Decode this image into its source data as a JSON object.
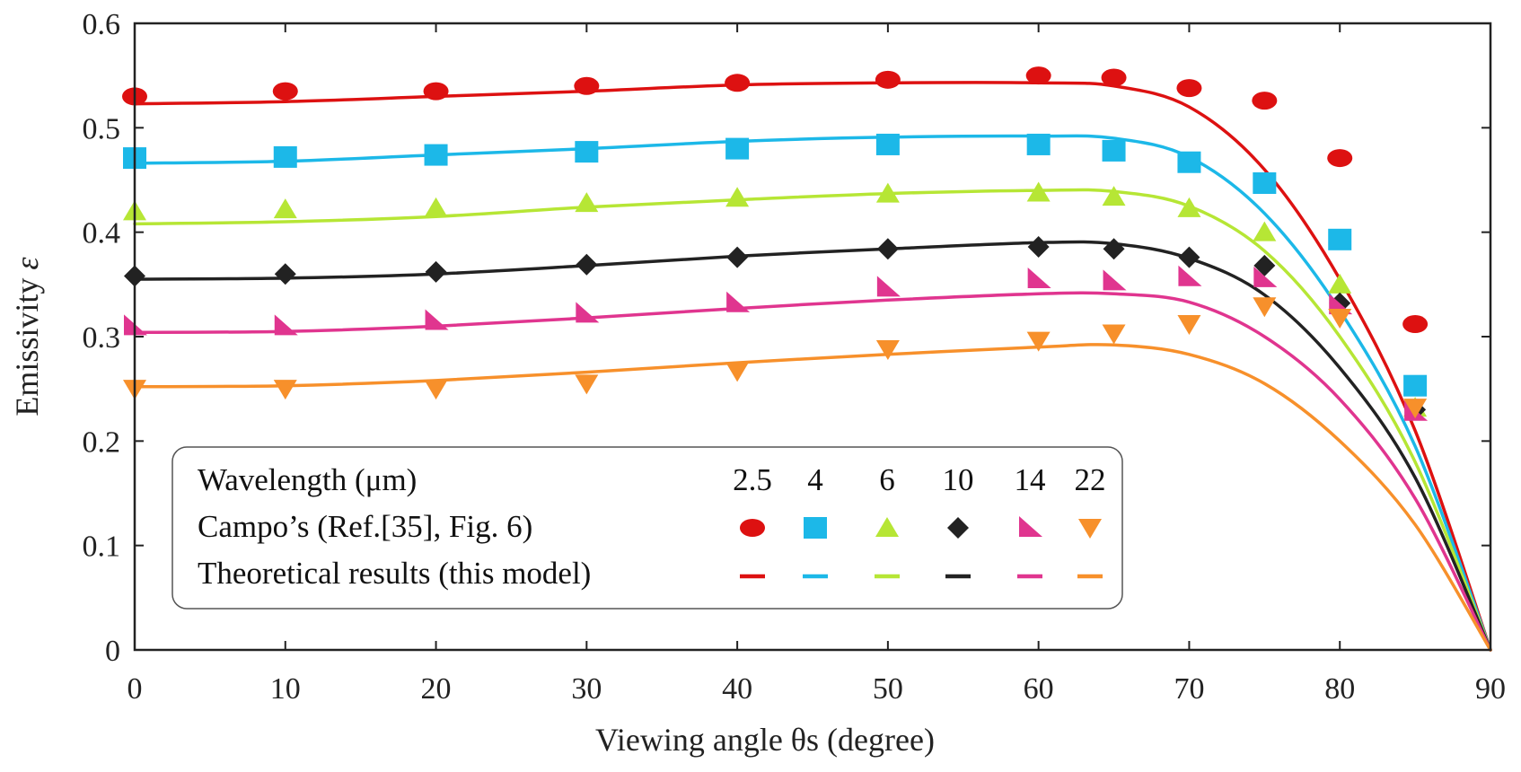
{
  "chart_data": {
    "type": "scatter",
    "title": "",
    "xlabel": "Viewing angle θs (degree)",
    "ylabel_main": "Emissivity ",
    "ylabel_symbol": "ε",
    "xlim": [
      0,
      90
    ],
    "ylim": [
      0,
      0.6
    ],
    "xticks": [
      0,
      10,
      20,
      30,
      40,
      50,
      60,
      70,
      80,
      90
    ],
    "yticks": [
      0,
      0.1,
      0.2,
      0.3,
      0.4,
      0.5,
      0.6
    ],
    "xtick_labels": [
      "0",
      "10",
      "20",
      "30",
      "40",
      "50",
      "60",
      "70",
      "80",
      "90"
    ],
    "ytick_labels": [
      "0",
      "0.1",
      "0.2",
      "0.3",
      "0.4",
      "0.5",
      "0.6"
    ],
    "grid": false,
    "legend": {
      "position": "bottom-left",
      "header_label": "Wavelength (μm)",
      "markers_label": "Campo’s (Ref.[35], Fig. 6)",
      "lines_label": "Theoretical results (this model)"
    },
    "series": [
      {
        "wavelength": "2.5",
        "color": "#dd1111",
        "marker": "ellipse",
        "points": [
          [
            0,
            0.53
          ],
          [
            10,
            0.535
          ],
          [
            20,
            0.535
          ],
          [
            30,
            0.54
          ],
          [
            40,
            0.543
          ],
          [
            50,
            0.546
          ],
          [
            60,
            0.55
          ],
          [
            65,
            0.548
          ],
          [
            70,
            0.538
          ],
          [
            75,
            0.526
          ],
          [
            80,
            0.471
          ],
          [
            85,
            0.312
          ]
        ],
        "curve": [
          [
            0,
            0.523
          ],
          [
            10,
            0.525
          ],
          [
            20,
            0.53
          ],
          [
            30,
            0.535
          ],
          [
            40,
            0.541
          ],
          [
            50,
            0.543
          ],
          [
            60,
            0.543
          ],
          [
            65,
            0.54
          ],
          [
            70,
            0.52
          ],
          [
            75,
            0.46
          ],
          [
            80,
            0.355
          ],
          [
            85,
            0.21
          ],
          [
            90,
            0
          ]
        ]
      },
      {
        "wavelength": "4",
        "color": "#1cb8e8",
        "marker": "square",
        "points": [
          [
            0,
            0.471
          ],
          [
            10,
            0.472
          ],
          [
            20,
            0.474
          ],
          [
            30,
            0.477
          ],
          [
            40,
            0.48
          ],
          [
            50,
            0.484
          ],
          [
            60,
            0.484
          ],
          [
            65,
            0.478
          ],
          [
            70,
            0.467
          ],
          [
            75,
            0.447
          ],
          [
            80,
            0.393
          ],
          [
            85,
            0.253
          ]
        ],
        "curve": [
          [
            0,
            0.466
          ],
          [
            10,
            0.468
          ],
          [
            20,
            0.474
          ],
          [
            30,
            0.48
          ],
          [
            40,
            0.487
          ],
          [
            50,
            0.491
          ],
          [
            60,
            0.492
          ],
          [
            65,
            0.49
          ],
          [
            70,
            0.472
          ],
          [
            75,
            0.418
          ],
          [
            80,
            0.325
          ],
          [
            85,
            0.195
          ],
          [
            90,
            0
          ]
        ]
      },
      {
        "wavelength": "6",
        "color": "#b6e635",
        "marker": "triangle-up",
        "points": [
          [
            0,
            0.42
          ],
          [
            10,
            0.422
          ],
          [
            20,
            0.423
          ],
          [
            30,
            0.428
          ],
          [
            40,
            0.433
          ],
          [
            50,
            0.437
          ],
          [
            60,
            0.438
          ],
          [
            65,
            0.434
          ],
          [
            70,
            0.423
          ],
          [
            75,
            0.4
          ],
          [
            80,
            0.35
          ],
          [
            85,
            0.232
          ]
        ],
        "curve": [
          [
            0,
            0.408
          ],
          [
            10,
            0.41
          ],
          [
            20,
            0.415
          ],
          [
            30,
            0.424
          ],
          [
            40,
            0.431
          ],
          [
            50,
            0.437
          ],
          [
            60,
            0.44
          ],
          [
            65,
            0.439
          ],
          [
            70,
            0.425
          ],
          [
            75,
            0.382
          ],
          [
            80,
            0.3
          ],
          [
            85,
            0.18
          ],
          [
            90,
            0
          ]
        ]
      },
      {
        "wavelength": "10",
        "color": "#222222",
        "marker": "diamond",
        "points": [
          [
            0,
            0.358
          ],
          [
            10,
            0.36
          ],
          [
            20,
            0.362
          ],
          [
            30,
            0.369
          ],
          [
            40,
            0.376
          ],
          [
            50,
            0.384
          ],
          [
            60,
            0.386
          ],
          [
            65,
            0.384
          ],
          [
            70,
            0.376
          ],
          [
            75,
            0.368
          ],
          [
            80,
            0.332
          ],
          [
            85,
            0.23
          ]
        ],
        "curve": [
          [
            0,
            0.355
          ],
          [
            10,
            0.356
          ],
          [
            20,
            0.36
          ],
          [
            30,
            0.368
          ],
          [
            40,
            0.377
          ],
          [
            50,
            0.384
          ],
          [
            60,
            0.39
          ],
          [
            65,
            0.389
          ],
          [
            70,
            0.375
          ],
          [
            75,
            0.34
          ],
          [
            80,
            0.27
          ],
          [
            85,
            0.165
          ],
          [
            90,
            0
          ]
        ]
      },
      {
        "wavelength": "14",
        "color": "#e0358f",
        "marker": "triangle-right",
        "points": [
          [
            0,
            0.31
          ],
          [
            10,
            0.31
          ],
          [
            20,
            0.315
          ],
          [
            30,
            0.322
          ],
          [
            40,
            0.332
          ],
          [
            50,
            0.347
          ],
          [
            60,
            0.355
          ],
          [
            65,
            0.353
          ],
          [
            70,
            0.357
          ],
          [
            75,
            0.356
          ],
          [
            80,
            0.33
          ],
          [
            85,
            0.228
          ]
        ],
        "curve": [
          [
            0,
            0.304
          ],
          [
            10,
            0.305
          ],
          [
            20,
            0.31
          ],
          [
            30,
            0.318
          ],
          [
            40,
            0.327
          ],
          [
            50,
            0.335
          ],
          [
            60,
            0.341
          ],
          [
            65,
            0.341
          ],
          [
            70,
            0.333
          ],
          [
            75,
            0.3
          ],
          [
            80,
            0.24
          ],
          [
            85,
            0.145
          ],
          [
            90,
            0
          ]
        ]
      },
      {
        "wavelength": "22",
        "color": "#f7902b",
        "marker": "triangle-down",
        "points": [
          [
            0,
            0.25
          ],
          [
            10,
            0.25
          ],
          [
            20,
            0.25
          ],
          [
            30,
            0.255
          ],
          [
            40,
            0.267
          ],
          [
            50,
            0.288
          ],
          [
            60,
            0.296
          ],
          [
            65,
            0.303
          ],
          [
            70,
            0.312
          ],
          [
            75,
            0.329
          ],
          [
            80,
            0.318
          ],
          [
            85,
            0.232
          ]
        ],
        "curve": [
          [
            0,
            0.252
          ],
          [
            10,
            0.253
          ],
          [
            20,
            0.258
          ],
          [
            30,
            0.266
          ],
          [
            40,
            0.275
          ],
          [
            50,
            0.283
          ],
          [
            60,
            0.29
          ],
          [
            65,
            0.292
          ],
          [
            70,
            0.283
          ],
          [
            75,
            0.255
          ],
          [
            80,
            0.2
          ],
          [
            85,
            0.12
          ],
          [
            90,
            0
          ]
        ]
      }
    ]
  }
}
